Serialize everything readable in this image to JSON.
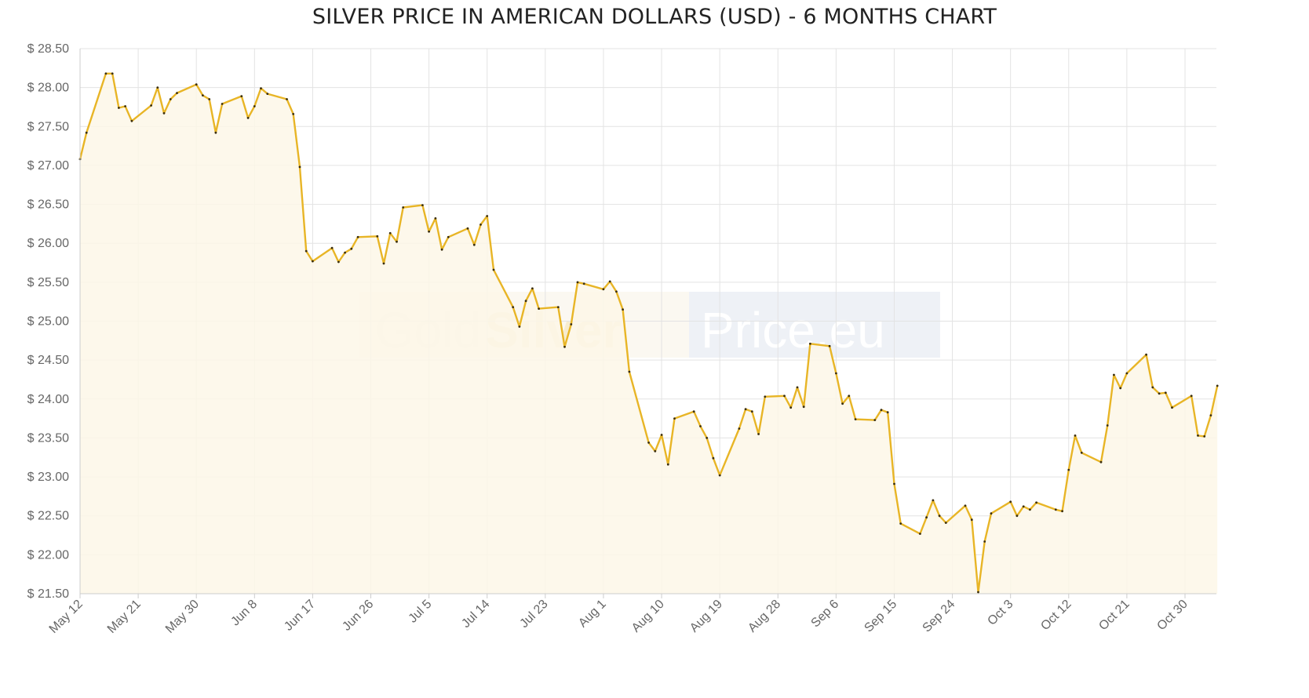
{
  "chart_data": {
    "type": "area",
    "title": "SILVER PRICE IN AMERICAN DOLLARS (USD) - 6 MONTHS CHART",
    "watermark": {
      "part1": "Gold",
      "part2": "Silver",
      "part3": "Price.eu"
    },
    "xlabel": "",
    "ylabel": "",
    "ylim": [
      21.5,
      28.5
    ],
    "y_ticks": [
      21.5,
      22.0,
      22.5,
      23.0,
      23.5,
      24.0,
      24.5,
      25.0,
      25.5,
      26.0,
      26.5,
      27.0,
      27.5,
      28.0,
      28.5
    ],
    "y_tick_labels": [
      "$ 21.50",
      "$ 22.00",
      "$ 22.50",
      "$ 23.00",
      "$ 23.50",
      "$ 24.00",
      "$ 24.50",
      "$ 25.00",
      "$ 25.50",
      "$ 26.00",
      "$ 26.50",
      "$ 27.00",
      "$ 27.50",
      "$ 28.00",
      "$ 28.50"
    ],
    "x_ticks": [
      {
        "label": "May 12",
        "day": 0
      },
      {
        "label": "May 21",
        "day": 9
      },
      {
        "label": "May 30",
        "day": 18
      },
      {
        "label": "Jun 8",
        "day": 27
      },
      {
        "label": "Jun 17",
        "day": 36
      },
      {
        "label": "Jun 26",
        "day": 45
      },
      {
        "label": "Jul 5",
        "day": 54
      },
      {
        "label": "Jul 14",
        "day": 63
      },
      {
        "label": "Jul 23",
        "day": 72
      },
      {
        "label": "Aug 1",
        "day": 81
      },
      {
        "label": "Aug 10",
        "day": 90
      },
      {
        "label": "Aug 19",
        "day": 99
      },
      {
        "label": "Aug 28",
        "day": 108
      },
      {
        "label": "Sep 6",
        "day": 117
      },
      {
        "label": "Sep 15",
        "day": 126
      },
      {
        "label": "Sep 24",
        "day": 135
      },
      {
        "label": "Oct 3",
        "day": 144
      },
      {
        "label": "Oct 12",
        "day": 153
      },
      {
        "label": "Oct 21",
        "day": 162
      },
      {
        "label": "Oct 30",
        "day": 171
      }
    ],
    "x_max_day": 175,
    "grid": true,
    "colors": {
      "line": "#e8b526",
      "fill": "#fdf7e8",
      "marker": "#3a2e10",
      "grid": "#e3e3e3"
    },
    "series": [
      {
        "values": [
          [
            0,
            27.08
          ],
          [
            1,
            27.42
          ],
          [
            4,
            28.18
          ],
          [
            5,
            28.18
          ],
          [
            6,
            27.74
          ],
          [
            7,
            27.76
          ],
          [
            8,
            27.57
          ],
          [
            11,
            27.77
          ],
          [
            12,
            28.0
          ],
          [
            13,
            27.67
          ],
          [
            14,
            27.85
          ],
          [
            15,
            27.93
          ],
          [
            18,
            28.04
          ],
          [
            19,
            27.9
          ],
          [
            20,
            27.85
          ],
          [
            21,
            27.42
          ],
          [
            22,
            27.79
          ],
          [
            25,
            27.89
          ],
          [
            26,
            27.61
          ],
          [
            27,
            27.76
          ],
          [
            28,
            27.99
          ],
          [
            29,
            27.92
          ],
          [
            32,
            27.85
          ],
          [
            33,
            27.66
          ],
          [
            34,
            26.98
          ],
          [
            35,
            25.9
          ],
          [
            36,
            25.77
          ],
          [
            39,
            25.94
          ],
          [
            40,
            25.76
          ],
          [
            41,
            25.88
          ],
          [
            42,
            25.93
          ],
          [
            43,
            26.08
          ],
          [
            46,
            26.09
          ],
          [
            47,
            25.74
          ],
          [
            48,
            26.13
          ],
          [
            49,
            26.02
          ],
          [
            50,
            26.46
          ],
          [
            53,
            26.49
          ],
          [
            54,
            26.15
          ],
          [
            55,
            26.32
          ],
          [
            56,
            25.92
          ],
          [
            57,
            26.08
          ],
          [
            60,
            26.19
          ],
          [
            61,
            25.98
          ],
          [
            62,
            26.24
          ],
          [
            63,
            26.35
          ],
          [
            64,
            25.66
          ],
          [
            67,
            25.18
          ],
          [
            68,
            24.93
          ],
          [
            69,
            25.26
          ],
          [
            70,
            25.42
          ],
          [
            71,
            25.16
          ],
          [
            74,
            25.18
          ],
          [
            75,
            24.67
          ],
          [
            76,
            24.96
          ],
          [
            77,
            25.5
          ],
          [
            78,
            25.48
          ],
          [
            81,
            25.41
          ],
          [
            82,
            25.51
          ],
          [
            83,
            25.38
          ],
          [
            84,
            25.15
          ],
          [
            85,
            24.35
          ],
          [
            88,
            23.44
          ],
          [
            89,
            23.33
          ],
          [
            90,
            23.54
          ],
          [
            91,
            23.16
          ],
          [
            92,
            23.75
          ],
          [
            95,
            23.84
          ],
          [
            96,
            23.65
          ],
          [
            97,
            23.5
          ],
          [
            98,
            23.24
          ],
          [
            99,
            23.02
          ],
          [
            102,
            23.62
          ],
          [
            103,
            23.87
          ],
          [
            104,
            23.84
          ],
          [
            105,
            23.55
          ],
          [
            106,
            24.03
          ],
          [
            109,
            24.04
          ],
          [
            110,
            23.89
          ],
          [
            111,
            24.15
          ],
          [
            112,
            23.9
          ],
          [
            113,
            24.71
          ],
          [
            116,
            24.68
          ],
          [
            117,
            24.33
          ],
          [
            118,
            23.94
          ],
          [
            119,
            24.04
          ],
          [
            120,
            23.74
          ],
          [
            123,
            23.73
          ],
          [
            124,
            23.86
          ],
          [
            125,
            23.83
          ],
          [
            126,
            22.91
          ],
          [
            127,
            22.4
          ],
          [
            130,
            22.27
          ],
          [
            131,
            22.48
          ],
          [
            132,
            22.7
          ],
          [
            133,
            22.5
          ],
          [
            134,
            22.41
          ],
          [
            137,
            22.63
          ],
          [
            138,
            22.45
          ],
          [
            139,
            21.52
          ],
          [
            140,
            22.17
          ],
          [
            141,
            22.53
          ],
          [
            144,
            22.68
          ],
          [
            145,
            22.5
          ],
          [
            146,
            22.62
          ],
          [
            147,
            22.58
          ],
          [
            148,
            22.67
          ],
          [
            151,
            22.58
          ],
          [
            152,
            22.56
          ],
          [
            153,
            23.09
          ],
          [
            154,
            23.53
          ],
          [
            155,
            23.31
          ],
          [
            158,
            23.19
          ],
          [
            159,
            23.66
          ],
          [
            160,
            24.31
          ],
          [
            161,
            24.14
          ],
          [
            162,
            24.33
          ],
          [
            165,
            24.57
          ],
          [
            166,
            24.15
          ],
          [
            167,
            24.07
          ],
          [
            168,
            24.08
          ],
          [
            169,
            23.89
          ],
          [
            172,
            24.04
          ],
          [
            173,
            23.53
          ],
          [
            174,
            23.52
          ],
          [
            175,
            23.79
          ],
          [
            176,
            24.17
          ]
        ]
      }
    ]
  }
}
